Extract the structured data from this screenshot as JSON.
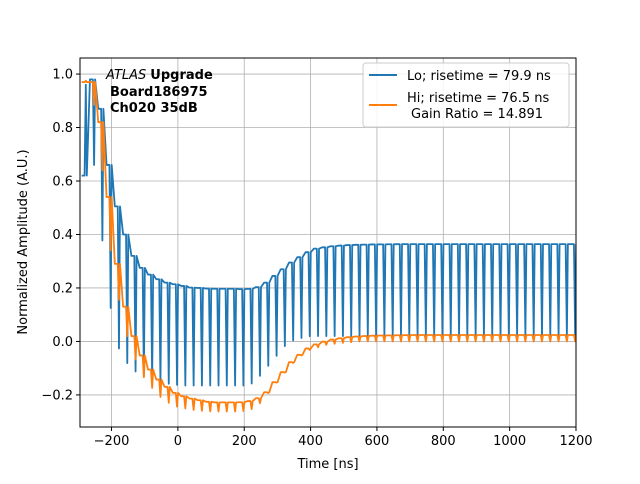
{
  "chart_data": {
    "type": "line",
    "xlabel": "Time [ns]",
    "ylabel": "Normalized Amplitude (A.U.)",
    "xlim": [
      -295,
      1200
    ],
    "ylim": [
      -0.32,
      1.06
    ],
    "xticks": [
      -200,
      0,
      200,
      400,
      600,
      800,
      1000,
      1200
    ],
    "yticks": [
      -0.2,
      0.0,
      0.2,
      0.4,
      0.6,
      0.8,
      1.0
    ],
    "xtick_labels": [
      "−200",
      "0",
      "200",
      "400",
      "600",
      "800",
      "1000",
      "1200"
    ],
    "ytick_labels": [
      "−0.2",
      "0.0",
      "0.2",
      "0.4",
      "0.6",
      "0.8",
      "1.0"
    ],
    "grid": true,
    "legend_position": "top-right",
    "annotation": {
      "experiment": "ATLAS",
      "tag": "Upgrade",
      "board": "Board186975",
      "channel": "Ch020 35dB"
    },
    "series": [
      {
        "name": "Lo; risetime = 79.9 ns",
        "color": "#1f77b4",
        "sampling_period_ns": 25,
        "envelope_points": {
          "x": [
            -290,
            -280,
            -270,
            -260,
            -250,
            -240,
            -230,
            -220,
            -210,
            -200,
            -180,
            -160,
            -140,
            -120,
            -100,
            -80,
            -60,
            -40,
            -20,
            0,
            20,
            40,
            60,
            80,
            100,
            120,
            140,
            160,
            180,
            200,
            220,
            240,
            260,
            280,
            300,
            320,
            340,
            360,
            380,
            400,
            450,
            500,
            550,
            600,
            700,
            800,
            900,
            1000,
            1100,
            1200
          ],
          "y_high": [
            0.62,
            1.0,
            0.99,
            0.97,
            0.93,
            0.87,
            0.8,
            0.7,
            0.62,
            0.55,
            0.46,
            0.38,
            0.32,
            0.28,
            0.26,
            0.24,
            0.23,
            0.22,
            0.215,
            0.21,
            0.205,
            0.2,
            0.2,
            0.198,
            0.197,
            0.197,
            0.197,
            0.197,
            0.196,
            0.195,
            0.198,
            0.205,
            0.22,
            0.24,
            0.26,
            0.28,
            0.3,
            0.315,
            0.33,
            0.345,
            0.355,
            0.36,
            0.362,
            0.363,
            0.364,
            0.364,
            0.364,
            0.364,
            0.364,
            0.364
          ],
          "y_low": [
            0.6,
            0.98,
            0.9,
            0.78,
            0.62,
            0.5,
            0.4,
            0.31,
            0.2,
            0.1,
            -0.02,
            -0.07,
            -0.1,
            -0.12,
            -0.13,
            -0.14,
            -0.15,
            -0.155,
            -0.16,
            -0.163,
            -0.165,
            -0.165,
            -0.165,
            -0.165,
            -0.165,
            -0.165,
            -0.165,
            -0.165,
            -0.165,
            -0.165,
            -0.16,
            -0.14,
            -0.11,
            -0.08,
            -0.05,
            -0.02,
            0.0,
            0.01,
            0.015,
            0.02,
            0.02,
            0.02,
            0.02,
            0.02,
            0.02,
            0.02,
            0.02,
            0.02,
            0.02,
            0.02
          ]
        }
      },
      {
        "name": "Hi; risetime = 76.5 ns",
        "color": "#ff7f0e",
        "sampling_period_ns": 25,
        "envelope_points": {
          "x": [
            -290,
            -280,
            -270,
            -260,
            -250,
            -240,
            -230,
            -220,
            -210,
            -200,
            -180,
            -160,
            -140,
            -120,
            -100,
            -80,
            -60,
            -40,
            -20,
            0,
            20,
            40,
            60,
            80,
            100,
            120,
            140,
            160,
            180,
            200,
            220,
            240,
            260,
            280,
            300,
            320,
            340,
            360,
            380,
            400,
            450,
            500,
            550,
            600,
            700,
            800,
            900,
            1000,
            1100,
            1200
          ],
          "y_high": [
            0.97,
            0.99,
            0.98,
            0.96,
            0.9,
            0.82,
            0.72,
            0.6,
            0.48,
            0.36,
            0.22,
            0.1,
            0.02,
            -0.04,
            -0.09,
            -0.12,
            -0.15,
            -0.17,
            -0.19,
            -0.2,
            -0.21,
            -0.215,
            -0.22,
            -0.225,
            -0.228,
            -0.228,
            -0.228,
            -0.228,
            -0.228,
            -0.226,
            -0.22,
            -0.21,
            -0.19,
            -0.16,
            -0.13,
            -0.1,
            -0.07,
            -0.05,
            -0.03,
            -0.015,
            0.005,
            0.015,
            0.02,
            0.022,
            0.024,
            0.024,
            0.024,
            0.024,
            0.024,
            0.024
          ],
          "y_low": [
            0.96,
            0.98,
            0.96,
            0.93,
            0.87,
            0.78,
            0.67,
            0.55,
            0.43,
            0.31,
            0.17,
            0.05,
            -0.03,
            -0.09,
            -0.14,
            -0.17,
            -0.2,
            -0.22,
            -0.235,
            -0.245,
            -0.25,
            -0.255,
            -0.258,
            -0.26,
            -0.262,
            -0.262,
            -0.262,
            -0.262,
            -0.262,
            -0.26,
            -0.255,
            -0.24,
            -0.215,
            -0.18,
            -0.15,
            -0.12,
            -0.09,
            -0.065,
            -0.045,
            -0.03,
            -0.012,
            -0.005,
            0.0,
            0.0,
            0.0,
            0.0,
            0.0,
            0.0,
            0.0,
            0.0
          ]
        }
      }
    ],
    "legend_extra_line": "Gain Ratio = 14.891"
  }
}
